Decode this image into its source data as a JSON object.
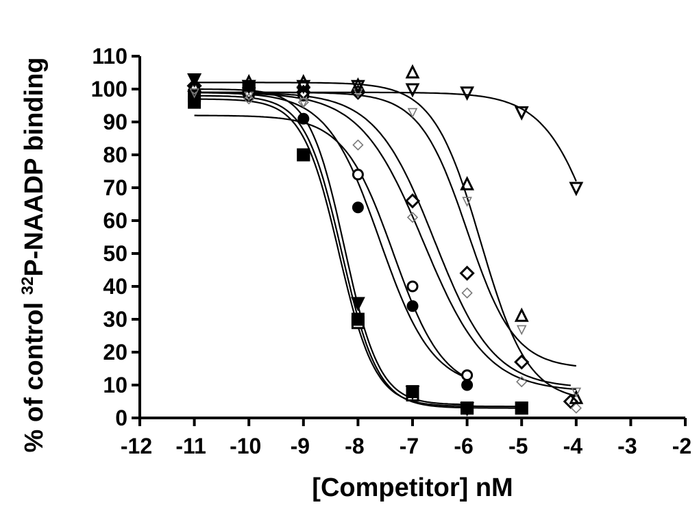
{
  "chart_data": {
    "type": "scatter",
    "title": "",
    "xlabel": "[Competitor] nM",
    "ylabel_parts": {
      "pre": "% of control ",
      "sup": "32",
      "post": "P-NAADP binding"
    },
    "xlim": [
      -12,
      -2
    ],
    "ylim": [
      0,
      110
    ],
    "x_ticks": [
      "-12",
      "-11",
      "-10",
      "-9",
      "-8",
      "-7",
      "-6",
      "-5",
      "-4",
      "-3",
      "-2"
    ],
    "y_ticks": [
      "0",
      "10",
      "20",
      "30",
      "40",
      "50",
      "60",
      "70",
      "80",
      "90",
      "100",
      "110"
    ],
    "grid": false,
    "legend": "none",
    "series": [
      {
        "marker": "square-open",
        "color": "#000000",
        "points": [
          [
            -11,
            98
          ],
          [
            -10,
            100
          ],
          [
            -9,
            80
          ],
          [
            -8,
            29
          ],
          [
            -7,
            7
          ],
          [
            -6,
            3
          ],
          [
            -5,
            3
          ]
        ],
        "fit": {
          "top": 98,
          "bottom": 3,
          "log_ic50": -8.3,
          "hill": 1.3
        }
      },
      {
        "marker": "square-filled",
        "color": "#000000",
        "points": [
          [
            -11,
            96
          ],
          [
            -10,
            100
          ],
          [
            -9,
            80
          ],
          [
            -8,
            30
          ],
          [
            -7,
            8
          ],
          [
            -6,
            3
          ],
          [
            -5,
            3
          ]
        ],
        "fit": {
          "top": 97,
          "bottom": 3.5,
          "log_ic50": -8.35,
          "hill": 1.3
        }
      },
      {
        "marker": "triangle-down-filled",
        "color": "#000000",
        "points": [
          [
            -11,
            103
          ],
          [
            -10,
            101
          ],
          [
            -9,
            99
          ],
          [
            -8,
            35
          ],
          [
            -7,
            8
          ],
          [
            -6,
            3
          ]
        ],
        "fit": {
          "top": 100,
          "bottom": 4,
          "log_ic50": -8.25,
          "hill": 1.35
        }
      },
      {
        "marker": "circle-filled",
        "color": "#000000",
        "points": [
          [
            -11,
            98
          ],
          [
            -10,
            99
          ],
          [
            -9,
            91
          ],
          [
            -8,
            64
          ],
          [
            -7,
            34
          ],
          [
            -6,
            10
          ]
        ],
        "fit": {
          "top": 92,
          "bottom": 8,
          "log_ic50": -7.35,
          "hill": 0.95
        }
      },
      {
        "marker": "circle-open",
        "color": "#000000",
        "points": [
          [
            -11,
            100
          ],
          [
            -10,
            98
          ],
          [
            -9,
            98
          ],
          [
            -8,
            74
          ],
          [
            -7,
            40
          ],
          [
            -6,
            13
          ]
        ],
        "fit": {
          "top": 99,
          "bottom": 9,
          "log_ic50": -7.6,
          "hill": 0.9
        }
      },
      {
        "marker": "diamond-open",
        "color": "#000000",
        "points": [
          [
            -11,
            101
          ],
          [
            -10,
            99
          ],
          [
            -9,
            99
          ],
          [
            -8,
            99
          ],
          [
            -7,
            66
          ],
          [
            -6,
            44
          ],
          [
            -5,
            17
          ],
          [
            -4.1,
            5
          ]
        ],
        "fit": {
          "top": 99,
          "bottom": 9,
          "log_ic50": -6.6,
          "hill": 0.8
        }
      },
      {
        "marker": "diamond-open-small",
        "color": "#777777",
        "points": [
          [
            -11,
            100
          ],
          [
            -10,
            97
          ],
          [
            -9,
            96
          ],
          [
            -8,
            83
          ],
          [
            -7,
            61
          ],
          [
            -6,
            38
          ],
          [
            -5,
            11
          ],
          [
            -4,
            3
          ]
        ],
        "fit": {
          "top": 99,
          "bottom": 8,
          "log_ic50": -6.8,
          "hill": 0.75
        }
      },
      {
        "marker": "triangle-up-open",
        "color": "#000000",
        "points": [
          [
            -11,
            101
          ],
          [
            -10,
            102
          ],
          [
            -9,
            102
          ],
          [
            -8,
            101
          ],
          [
            -7,
            105
          ],
          [
            -6,
            71
          ],
          [
            -5,
            31
          ],
          [
            -4,
            6
          ]
        ],
        "fit": {
          "top": 102,
          "bottom": 5,
          "log_ic50": -5.75,
          "hill": 1.0
        }
      },
      {
        "marker": "triangle-down-open-small",
        "color": "#777777",
        "points": [
          [
            -11,
            99
          ],
          [
            -10,
            98
          ],
          [
            -9,
            96
          ],
          [
            -8,
            99
          ],
          [
            -7,
            93
          ],
          [
            -6,
            66
          ],
          [
            -5,
            27
          ],
          [
            -4,
            8
          ]
        ],
        "fit": {
          "top": 99,
          "bottom": 15,
          "log_ic50": -6.0,
          "hill": 1.0
        }
      },
      {
        "marker": "triangle-down-open",
        "color": "#000000",
        "points": [
          [
            -11,
            103
          ],
          [
            -10,
            101
          ],
          [
            -9,
            101
          ],
          [
            -8,
            101
          ],
          [
            -7,
            100
          ],
          [
            -6,
            99
          ],
          [
            -5,
            93
          ],
          [
            -4,
            70
          ]
        ],
        "fit": {
          "top": 99,
          "bottom": 0,
          "log_ic50": -3.5,
          "hill": 0.85
        }
      }
    ]
  }
}
